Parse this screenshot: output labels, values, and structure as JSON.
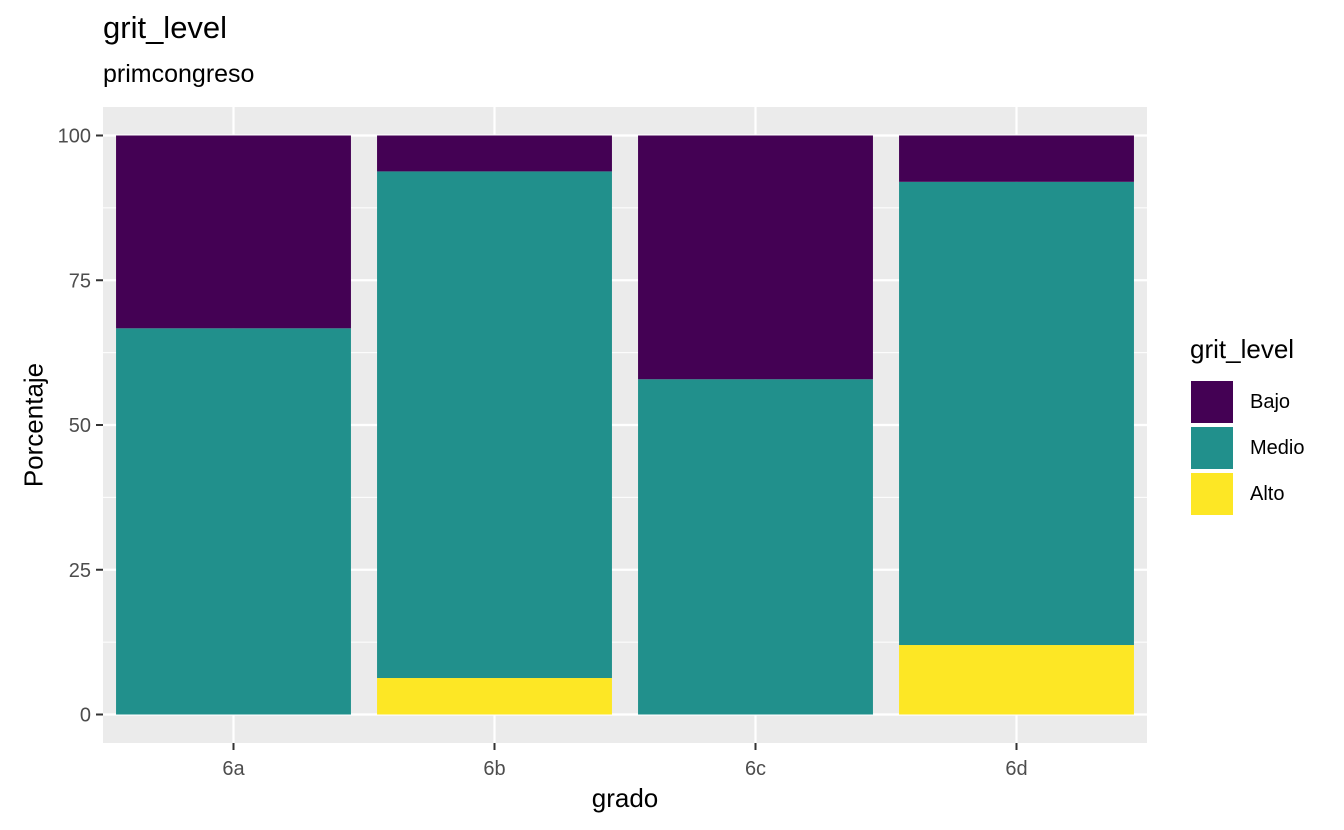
{
  "chart_data": {
    "type": "bar",
    "stacked": true,
    "title": "grit_level",
    "subtitle": "primcongreso",
    "xlabel": "grado",
    "ylabel": "Porcentaje",
    "categories": [
      "6a",
      "6b",
      "6c",
      "6d"
    ],
    "ylim": [
      0,
      100
    ],
    "yticks": [
      0,
      25,
      50,
      75,
      100
    ],
    "grid": true,
    "legend": {
      "title": "grit_level",
      "position": "right"
    },
    "series": [
      {
        "name": "Bajo",
        "color": "#440154",
        "values": [
          33.3,
          6.2,
          42.1,
          8.0
        ]
      },
      {
        "name": "Medio",
        "color": "#21908C",
        "values": [
          66.7,
          87.5,
          57.9,
          80.0
        ]
      },
      {
        "name": "Alto",
        "color": "#FDE725",
        "values": [
          0,
          6.3,
          0,
          12.0
        ]
      }
    ]
  }
}
